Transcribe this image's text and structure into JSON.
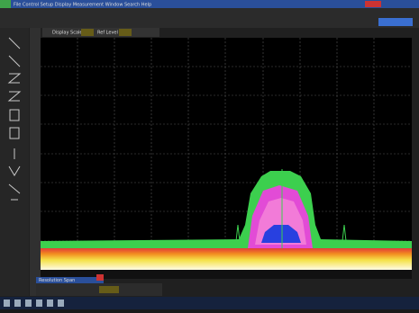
{
  "window": {
    "title": "File Control Setup Display Measurement Window Search Help"
  },
  "toolbar": {
    "scale_label": "Display Scale",
    "ref_label": "Ref Level"
  },
  "panel": {
    "title": "Resolution Span"
  }
}
